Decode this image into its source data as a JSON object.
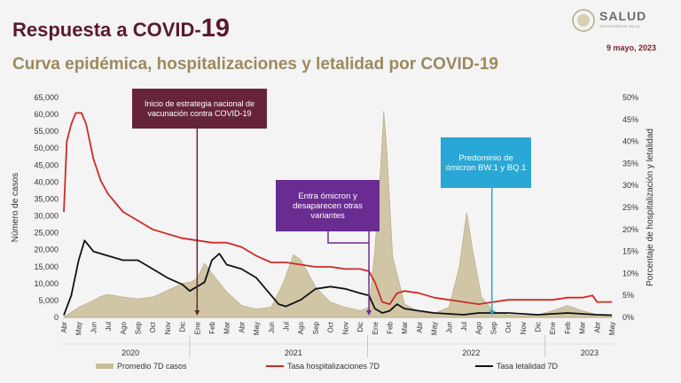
{
  "header": {
    "title_prefix": "Respuesta a COVID-",
    "title_number": "19",
    "subtitle": "Curva epidémica, hospitalizaciones y letalidad por COVID-19",
    "date": "9 mayo, 2023",
    "logo_text": "SALUD",
    "logo_sub": "SECRETARÍA DE SALUD"
  },
  "colors": {
    "cases": "#c9bd98",
    "hosp": "#cf2a27",
    "leth": "#111111",
    "ann1": "#66243a",
    "ann2": "#6a2c91",
    "ann3": "#29a7d6"
  },
  "annotations": {
    "vaccination": "Inicio de estrategia nacional de vacunación contra COVID-19",
    "omicron_entry": "Entra ómicron y desaparecen otras variantes",
    "omicron_bw": "Predominio de ómicron BW.1 y BQ.1"
  },
  "legend": {
    "cases": "Promedio 7D casos",
    "hosp": "Tasa hospitalizaciones 7D",
    "leth": "Tasa letalidad 7D"
  },
  "chart_data": {
    "type": "area+line",
    "title": "Curva epidémica, hospitalizaciones y letalidad por COVID-19",
    "ylabel": "Número de casos",
    "y2label": "Porcentaje de hospitalización y letalidad",
    "ylim": [
      0,
      65000
    ],
    "y2lim": [
      0,
      50
    ],
    "yticks": [
      "0",
      "5,000",
      "10,000",
      "15,000",
      "20,000",
      "25,000",
      "30,000",
      "35,000",
      "40,000",
      "45,000",
      "50,000",
      "55,000",
      "60,000",
      "65,000"
    ],
    "y2ticks": [
      "0%",
      "5%",
      "10%",
      "15%",
      "20%",
      "25%",
      "30%",
      "35%",
      "40%",
      "45%",
      "50%"
    ],
    "months": [
      "Abr",
      "May",
      "Jun",
      "Jul",
      "Ago",
      "Sep",
      "Oct",
      "Nov",
      "Dic",
      "Ene",
      "Feb",
      "Mar",
      "Abr",
      "May",
      "Jun",
      "Jul",
      "Ago",
      "Sep",
      "Oct",
      "Nov",
      "Dic",
      "Ene",
      "Feb",
      "Mar",
      "Abr",
      "May",
      "Jun",
      "Jul",
      "Ago",
      "Sep",
      "Oct",
      "Nov",
      "Dic",
      "Ene",
      "Feb",
      "Mar",
      "Abr",
      "May"
    ],
    "years": [
      {
        "label": "2020",
        "center_month": 4.5
      },
      {
        "label": "2021",
        "center_month": 15.5
      },
      {
        "label": "2022",
        "center_month": 27.5
      },
      {
        "label": "2023",
        "center_month": 35.5
      }
    ],
    "vlines": [
      {
        "month": 9.0,
        "color": "#66243a"
      },
      {
        "month": 20.6,
        "color": "#6a2c91"
      },
      {
        "month": 28.9,
        "color": "#29a7d6"
      }
    ],
    "series": [
      {
        "name": "Promedio 7D casos",
        "axis": "left",
        "kind": "area",
        "points": [
          [
            0,
            200
          ],
          [
            0.5,
            1500
          ],
          [
            1,
            3000
          ],
          [
            2,
            5000
          ],
          [
            2.5,
            6200
          ],
          [
            3,
            6800
          ],
          [
            4,
            6000
          ],
          [
            5,
            5500
          ],
          [
            6,
            6000
          ],
          [
            7,
            8000
          ],
          [
            8,
            10000
          ],
          [
            8.6,
            10500
          ],
          [
            9,
            11500
          ],
          [
            9.5,
            16000
          ],
          [
            10,
            13000
          ],
          [
            11,
            7500
          ],
          [
            12,
            3500
          ],
          [
            13,
            2500
          ],
          [
            14,
            3000
          ],
          [
            14.8,
            10000
          ],
          [
            15.5,
            18500
          ],
          [
            16,
            17000
          ],
          [
            17,
            9000
          ],
          [
            18,
            4500
          ],
          [
            19,
            3000
          ],
          [
            20,
            2000
          ],
          [
            20.6,
            3000
          ],
          [
            21,
            20000
          ],
          [
            21.4,
            45000
          ],
          [
            21.6,
            61000
          ],
          [
            21.8,
            50000
          ],
          [
            22.2,
            18000
          ],
          [
            23,
            4000
          ],
          [
            24,
            1500
          ],
          [
            25,
            1200
          ],
          [
            26,
            3000
          ],
          [
            26.7,
            15000
          ],
          [
            27.2,
            31000
          ],
          [
            27.6,
            20000
          ],
          [
            28.2,
            6000
          ],
          [
            29,
            1800
          ],
          [
            30,
            700
          ],
          [
            31,
            500
          ],
          [
            32,
            700
          ],
          [
            33,
            2000
          ],
          [
            34,
            3500
          ],
          [
            35,
            2000
          ],
          [
            36,
            800
          ],
          [
            37,
            400
          ]
        ]
      },
      {
        "name": "Tasa hospitalizaciones 7D",
        "axis": "right",
        "kind": "line",
        "points": [
          [
            0,
            24
          ],
          [
            0.2,
            40
          ],
          [
            0.5,
            44
          ],
          [
            0.8,
            46.5
          ],
          [
            1.2,
            46.5
          ],
          [
            1.5,
            44
          ],
          [
            2,
            36
          ],
          [
            2.5,
            31
          ],
          [
            3,
            28
          ],
          [
            4,
            24
          ],
          [
            5,
            22
          ],
          [
            6,
            20
          ],
          [
            7,
            19
          ],
          [
            8,
            18
          ],
          [
            9,
            17.5
          ],
          [
            10,
            17
          ],
          [
            11,
            17
          ],
          [
            12,
            16
          ],
          [
            13,
            14
          ],
          [
            14,
            12.5
          ],
          [
            15,
            12.5
          ],
          [
            16,
            12
          ],
          [
            17,
            11.5
          ],
          [
            18,
            11.5
          ],
          [
            19,
            11
          ],
          [
            20,
            11
          ],
          [
            20.6,
            10.5
          ],
          [
            21,
            8
          ],
          [
            21.5,
            3.5
          ],
          [
            22,
            3
          ],
          [
            22.5,
            5.5
          ],
          [
            23,
            6
          ],
          [
            24,
            5.5
          ],
          [
            25,
            4.5
          ],
          [
            26,
            4
          ],
          [
            27,
            3.5
          ],
          [
            28,
            3
          ],
          [
            29,
            3.5
          ],
          [
            30,
            4
          ],
          [
            31,
            4
          ],
          [
            32,
            4
          ],
          [
            33,
            4
          ],
          [
            34,
            4.5
          ],
          [
            35,
            4.5
          ],
          [
            35.7,
            5
          ],
          [
            36,
            3.5
          ],
          [
            37,
            3.5
          ]
        ]
      },
      {
        "name": "Tasa letalidad 7D",
        "axis": "right",
        "kind": "line",
        "points": [
          [
            0,
            0.5
          ],
          [
            0.5,
            5
          ],
          [
            1,
            13
          ],
          [
            1.4,
            17.5
          ],
          [
            2,
            15
          ],
          [
            3,
            14
          ],
          [
            4,
            13
          ],
          [
            5,
            13
          ],
          [
            6,
            11
          ],
          [
            7,
            9
          ],
          [
            8,
            7.5
          ],
          [
            8.5,
            6
          ],
          [
            9,
            7
          ],
          [
            9.5,
            8
          ],
          [
            10,
            13
          ],
          [
            10.5,
            14.5
          ],
          [
            11,
            12
          ],
          [
            12,
            11
          ],
          [
            13,
            9
          ],
          [
            14,
            5
          ],
          [
            14.5,
            3
          ],
          [
            15,
            2.5
          ],
          [
            16,
            4
          ],
          [
            17,
            6.5
          ],
          [
            18,
            7
          ],
          [
            19,
            6.5
          ],
          [
            20,
            5.5
          ],
          [
            20.6,
            5
          ],
          [
            21,
            2
          ],
          [
            21.5,
            1
          ],
          [
            22,
            1.5
          ],
          [
            22.5,
            3
          ],
          [
            23,
            2
          ],
          [
            24,
            1.5
          ],
          [
            25,
            1
          ],
          [
            26,
            0.8
          ],
          [
            27,
            0.6
          ],
          [
            28,
            1
          ],
          [
            29,
            1
          ],
          [
            30,
            1
          ],
          [
            31,
            0.8
          ],
          [
            32,
            0.6
          ],
          [
            33,
            0.8
          ],
          [
            34,
            1
          ],
          [
            35,
            0.8
          ],
          [
            36,
            0.6
          ],
          [
            37,
            0.5
          ]
        ]
      }
    ]
  }
}
